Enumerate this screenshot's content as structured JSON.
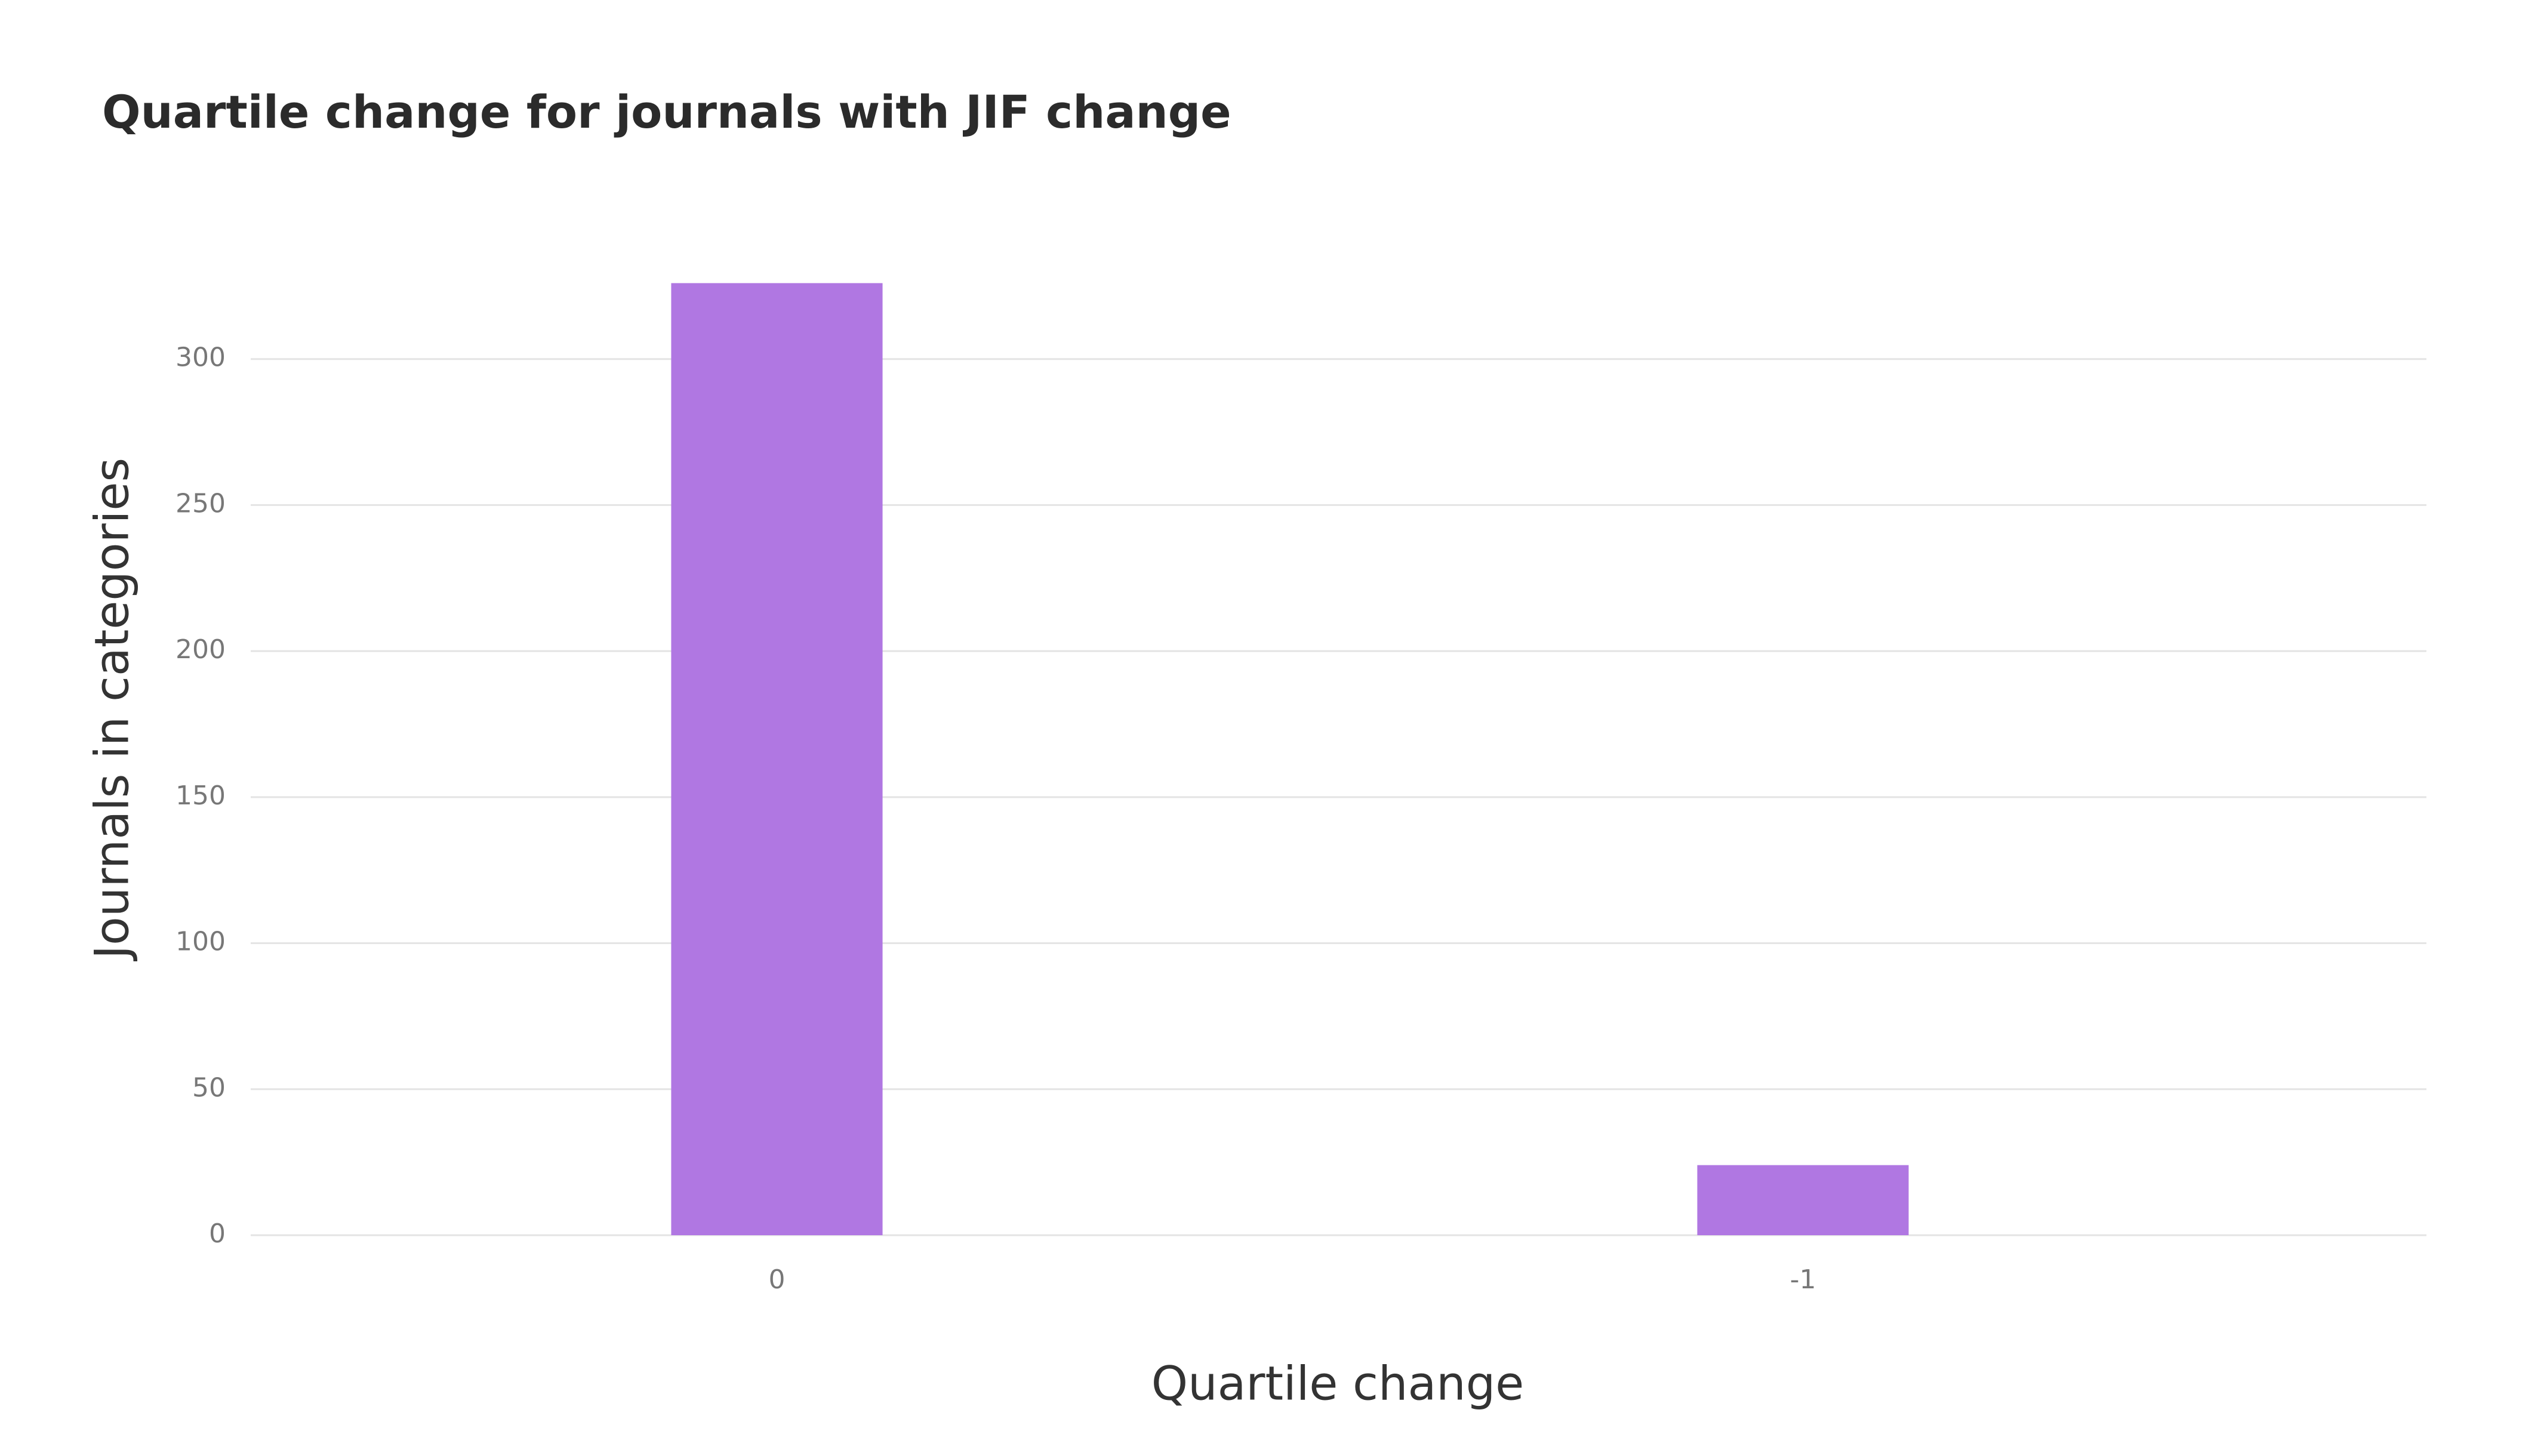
{
  "chart_data": {
    "type": "bar",
    "title": "Quartile change for journals with JIF change",
    "x_label": "Quartile change",
    "y_label": "Journals in categories",
    "categories": [
      "0",
      "-1"
    ],
    "values": [
      326,
      24
    ],
    "color": "#b077e2",
    "ylim": [
      0,
      350
    ],
    "yticks": [
      0,
      50,
      100,
      150,
      200,
      250,
      300
    ],
    "grid": true
  }
}
